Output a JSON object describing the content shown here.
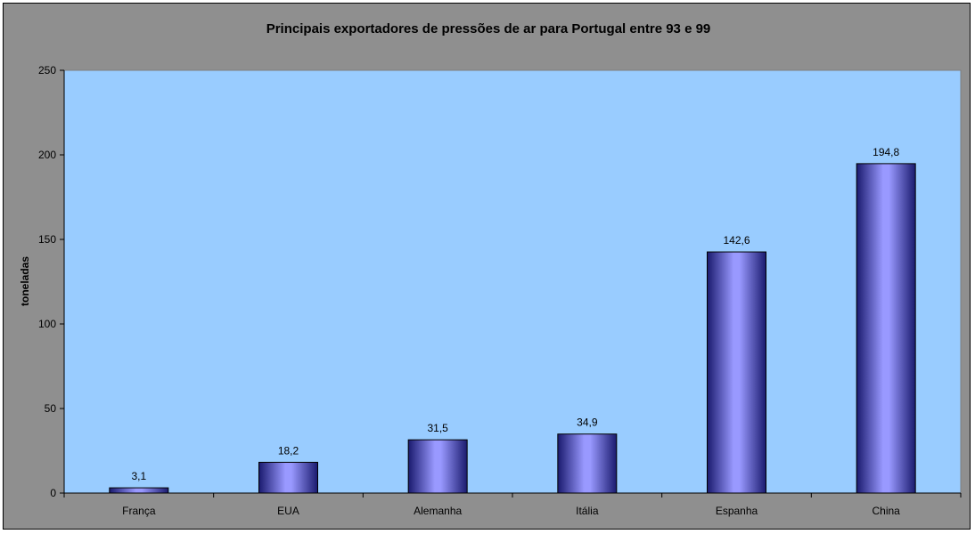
{
  "chart_data": {
    "type": "bar",
    "title": "Principais exportadores de pressões de ar para Portugal entre 93 e 99",
    "xlabel": "",
    "ylabel": "toneladas",
    "categories": [
      "França",
      "EUA",
      "Alemanha",
      "Itália",
      "Espanha",
      "China"
    ],
    "values": [
      3.1,
      18.2,
      31.5,
      34.9,
      142.6,
      194.8
    ],
    "data_labels": [
      "3,1",
      "18,2",
      "31,5",
      "34,9",
      "142,6",
      "194,8"
    ],
    "ylim": [
      0,
      250
    ],
    "yticks": [
      0,
      50,
      100,
      150,
      200,
      250
    ],
    "grid": false,
    "legend": "none",
    "colors": {
      "frame_background": "#8f8f8f",
      "plot_background": "#99ccff",
      "bar_edge": "#1a1a6e",
      "bar_center": "#9999ff"
    }
  }
}
